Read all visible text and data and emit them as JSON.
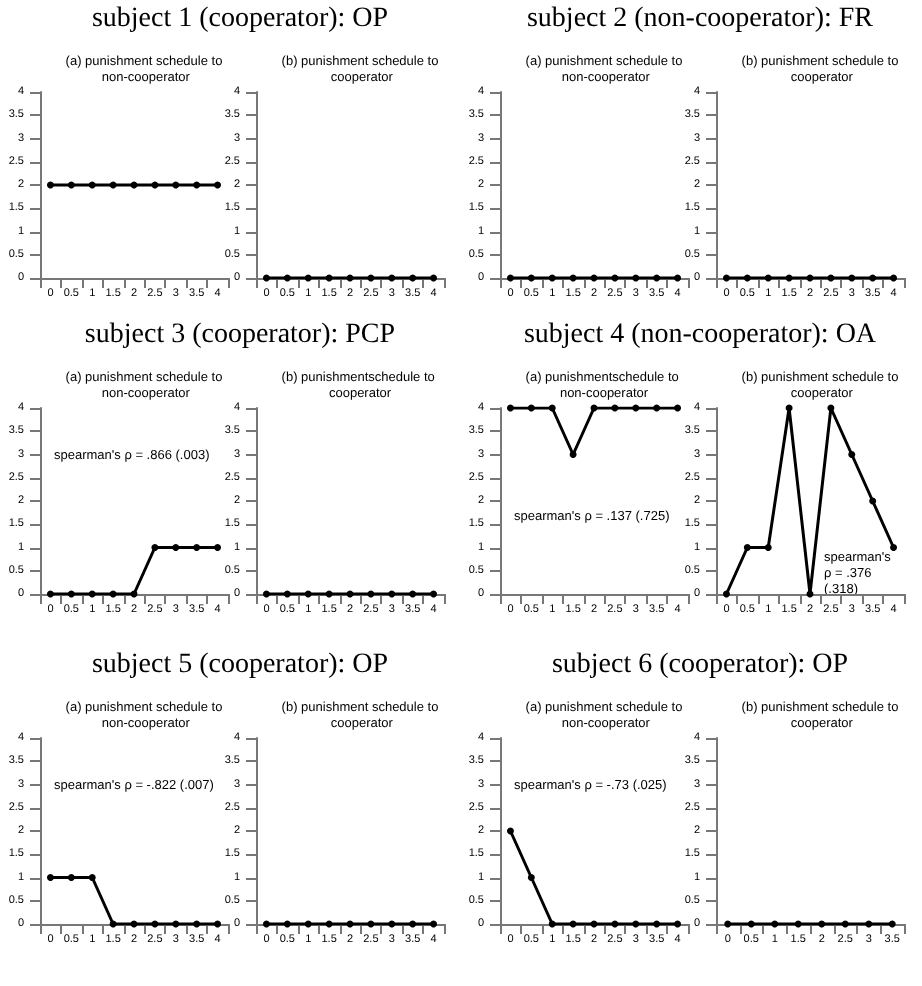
{
  "chart_data": [
    {
      "type": "line",
      "title": "subject 1 (cooperator): OP",
      "subtitle": "(a) punishment schedule to non-cooperator",
      "categories": [
        "0",
        "0.5",
        "1",
        "1.5",
        "2",
        "2.5",
        "3",
        "3.5",
        "4"
      ],
      "series": [
        {
          "color": "#000000",
          "values": [
            2,
            2,
            2,
            2,
            2,
            2,
            2,
            2,
            2
          ]
        }
      ],
      "ylim": [
        0,
        4
      ],
      "yticks": [
        0,
        0.5,
        1,
        1.5,
        2,
        2.5,
        3,
        3.5,
        4
      ],
      "grid": false,
      "marker": "circle",
      "line_style": "solid"
    },
    {
      "type": "line",
      "subtitle": "(b) punishment schedule to cooperator",
      "categories": [
        "0",
        "0.5",
        "1",
        "1.5",
        "2",
        "2.5",
        "3",
        "3.5",
        "4"
      ],
      "series": [
        {
          "color": "#000000",
          "values": [
            0,
            0,
            0,
            0,
            0,
            0,
            0,
            0,
            0
          ]
        }
      ],
      "ylim": [
        0,
        4
      ],
      "yticks": [
        0,
        0.5,
        1,
        1.5,
        2,
        2.5,
        3,
        3.5,
        4
      ],
      "grid": false,
      "marker": "circle",
      "line_style": "solid"
    },
    {
      "type": "line",
      "title": "subject 2 (non-cooperator): FR",
      "subtitle": "(a) punishment schedule to non-cooperator",
      "categories": [
        "0",
        "0.5",
        "1",
        "1.5",
        "2",
        "2.5",
        "3",
        "3.5",
        "4"
      ],
      "series": [
        {
          "color": "#000000",
          "values": [
            0,
            0,
            0,
            0,
            0,
            0,
            0,
            0,
            0
          ]
        }
      ],
      "ylim": [
        0,
        4
      ],
      "yticks": [
        0,
        0.5,
        1,
        1.5,
        2,
        2.5,
        3,
        3.5,
        4
      ],
      "grid": false,
      "marker": "circle",
      "line_style": "solid"
    },
    {
      "type": "line",
      "subtitle": "(b) punishment schedule to cooperator",
      "categories": [
        "0",
        "0.5",
        "1",
        "1.5",
        "2",
        "2.5",
        "3",
        "3.5",
        "4"
      ],
      "series": [
        {
          "color": "#000000",
          "values": [
            0,
            0,
            0,
            0,
            0,
            0,
            0,
            0,
            0
          ]
        }
      ],
      "ylim": [
        0,
        4
      ],
      "yticks": [
        0,
        0.5,
        1,
        1.5,
        2,
        2.5,
        3,
        3.5,
        4
      ],
      "grid": false,
      "marker": "circle",
      "line_style": "solid"
    },
    {
      "type": "line",
      "title": "subject 3 (cooperator): PCP",
      "subtitle": "(a) punishment schedule to non-cooperator",
      "annotations": [
        "spearman's ρ = .866 (.003)"
      ],
      "categories": [
        "0",
        "0.5",
        "1",
        "1.5",
        "2",
        "2.5",
        "3",
        "3.5",
        "4"
      ],
      "series": [
        {
          "color": "#000000",
          "values": [
            0,
            0,
            0,
            0,
            0,
            1,
            1,
            1,
            1
          ]
        }
      ],
      "ylim": [
        0,
        4
      ],
      "yticks": [
        0,
        0.5,
        1,
        1.5,
        2,
        2.5,
        3,
        3.5,
        4
      ],
      "grid": false,
      "marker": "circle",
      "line_style": "solid"
    },
    {
      "type": "line",
      "subtitle": "(b) punishmentschedule to cooperator",
      "categories": [
        "0",
        "0.5",
        "1",
        "1.5",
        "2",
        "2.5",
        "3",
        "3.5",
        "4"
      ],
      "series": [
        {
          "color": "#000000",
          "values": [
            0,
            0,
            0,
            0,
            0,
            0,
            0,
            0,
            0
          ]
        }
      ],
      "ylim": [
        0,
        4
      ],
      "yticks": [
        0,
        0.5,
        1,
        1.5,
        2,
        2.5,
        3,
        3.5,
        4
      ],
      "grid": false,
      "marker": "circle",
      "line_style": "solid"
    },
    {
      "type": "line",
      "title": "subject 4 (non-cooperator): OA",
      "subtitle": "(a) punishmentschedule to non-cooperator",
      "annotations": [
        "spearman's ρ = .137 (.725)"
      ],
      "categories": [
        "0",
        "0.5",
        "1",
        "1.5",
        "2",
        "2.5",
        "3",
        "3.5",
        "4"
      ],
      "series": [
        {
          "color": "#000000",
          "values": [
            4,
            4,
            4,
            3,
            4,
            4,
            4,
            4,
            4
          ]
        }
      ],
      "ylim": [
        0,
        4
      ],
      "yticks": [
        0,
        0.5,
        1,
        1.5,
        2,
        2.5,
        3,
        3.5,
        4
      ],
      "grid": false,
      "marker": "circle",
      "line_style": "solid"
    },
    {
      "type": "line",
      "subtitle": "(b) punishment schedule to cooperator",
      "annotations": [
        "spearman's ρ = .376 (.318)"
      ],
      "categories": [
        "0",
        "0.5",
        "1",
        "1.5",
        "2",
        "2.5",
        "3",
        "3.5",
        "4"
      ],
      "series": [
        {
          "color": "#000000",
          "values": [
            0,
            1,
            1,
            4,
            0,
            4,
            3,
            2,
            1
          ]
        }
      ],
      "ylim": [
        0,
        4
      ],
      "yticks": [
        0,
        0.5,
        1,
        1.5,
        2,
        2.5,
        3,
        3.5,
        4
      ],
      "grid": false,
      "marker": "circle",
      "line_style": "solid"
    },
    {
      "type": "line",
      "title": "subject 5 (cooperator): OP",
      "subtitle": "(a) punishment schedule to non-cooperator",
      "annotations": [
        "spearman's ρ = -.822 (.007)"
      ],
      "categories": [
        "0",
        "0.5",
        "1",
        "1.5",
        "2",
        "2.5",
        "3",
        "3.5",
        "4"
      ],
      "series": [
        {
          "color": "#000000",
          "values": [
            1,
            1,
            1,
            0,
            0,
            0,
            0,
            0,
            0
          ]
        }
      ],
      "ylim": [
        0,
        4
      ],
      "yticks": [
        0,
        0.5,
        1,
        1.5,
        2,
        2.5,
        3,
        3.5,
        4
      ],
      "grid": false,
      "marker": "circle",
      "line_style": "solid"
    },
    {
      "type": "line",
      "subtitle": "(b) punishment schedule to cooperator",
      "categories": [
        "0",
        "0.5",
        "1",
        "1.5",
        "2",
        "2.5",
        "3",
        "3.5",
        "4"
      ],
      "series": [
        {
          "color": "#000000",
          "values": [
            0,
            0,
            0,
            0,
            0,
            0,
            0,
            0,
            0
          ]
        }
      ],
      "ylim": [
        0,
        4
      ],
      "yticks": [
        0,
        0.5,
        1,
        1.5,
        2,
        2.5,
        3,
        3.5,
        4
      ],
      "grid": false,
      "marker": "circle",
      "line_style": "solid"
    },
    {
      "type": "line",
      "title": "subject 6 (cooperator): OP",
      "subtitle": "(a) punishment schedule to non-cooperator",
      "annotations": [
        "spearman's ρ = -.73 (.025)"
      ],
      "categories": [
        "0",
        "0.5",
        "1",
        "1.5",
        "2",
        "2.5",
        "3",
        "3.5",
        "4"
      ],
      "series": [
        {
          "color": "#000000",
          "values": [
            2,
            1,
            0,
            0,
            0,
            0,
            0,
            0,
            0
          ]
        }
      ],
      "ylim": [
        0,
        4
      ],
      "yticks": [
        0,
        0.5,
        1,
        1.5,
        2,
        2.5,
        3,
        3.5,
        4
      ],
      "grid": false,
      "marker": "circle",
      "line_style": "solid"
    },
    {
      "type": "line",
      "subtitle": "(b) punishment schedule to cooperator",
      "categories": [
        "0",
        "0.5",
        "1",
        "1.5",
        "2",
        "2.5",
        "3",
        "3.5"
      ],
      "series": [
        {
          "color": "#000000",
          "values": [
            0,
            0,
            0,
            0,
            0,
            0,
            0,
            0
          ]
        }
      ],
      "ylim": [
        0,
        4
      ],
      "yticks": [
        0,
        0.5,
        1,
        1.5,
        2,
        2.5,
        3,
        3.5,
        4
      ],
      "grid": false,
      "marker": "circle",
      "line_style": "solid"
    }
  ]
}
